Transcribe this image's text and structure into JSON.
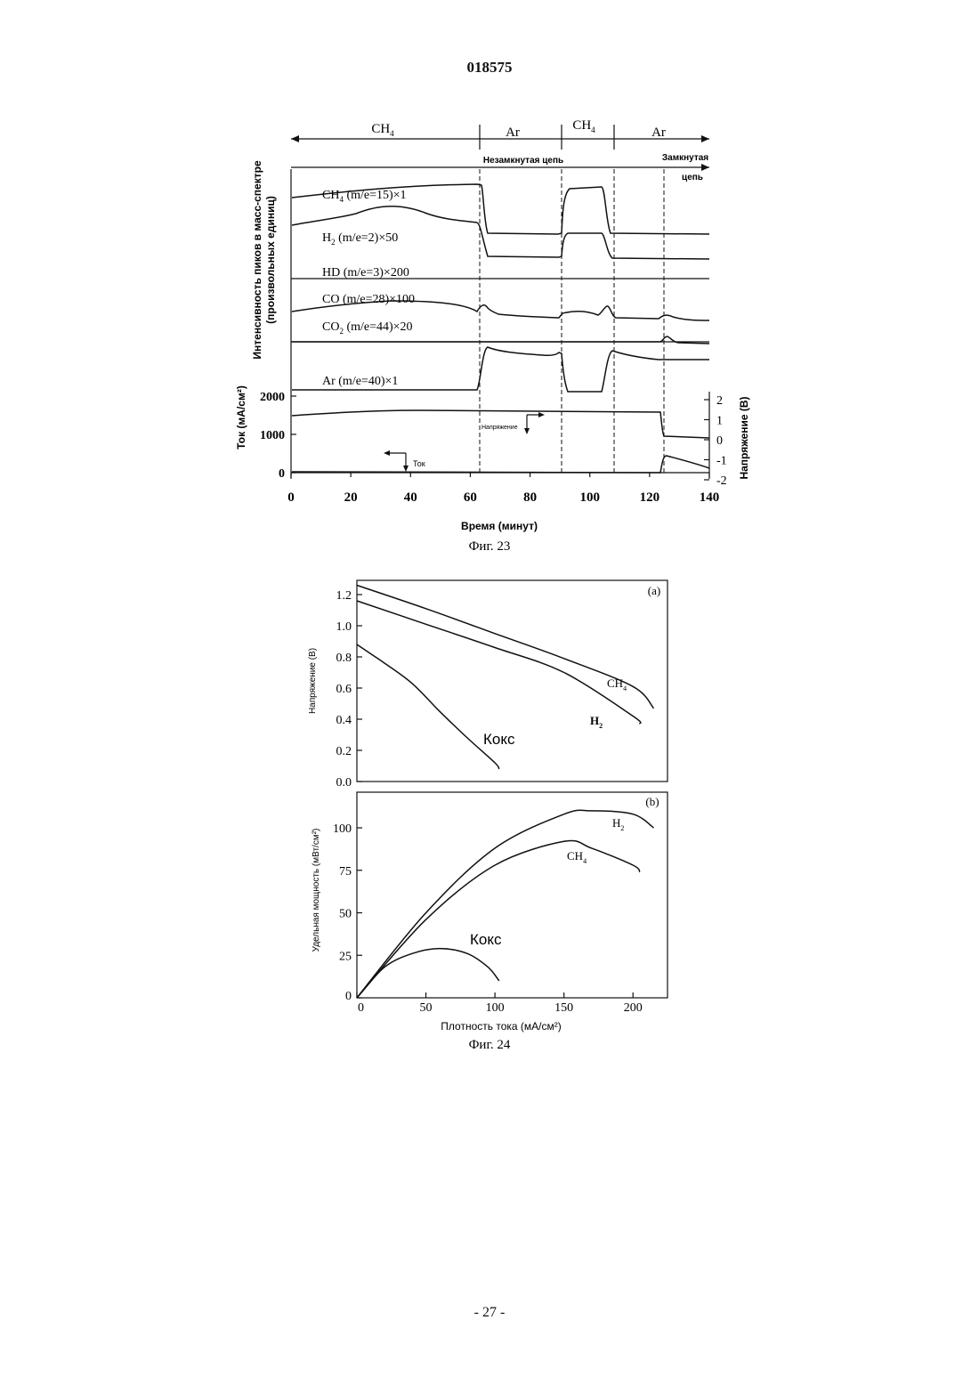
{
  "page": {
    "header": "018575",
    "footer": "- 27 -"
  },
  "fig23": {
    "caption": "Фиг. 23",
    "phases": [
      "CH4",
      "Ar",
      "CH4",
      "Ar"
    ],
    "phase_sub": [
      "CH",
      "4"
    ],
    "phase_ar": "Ar",
    "circuit_open": "Незамкнутая цепь",
    "circuit_closed_line1": "Замкнутая",
    "circuit_closed_line2": "цепь",
    "left_label_top_line1": "Интенсивность пиков в масс-спектре",
    "left_label_top_line2": "(произвольных единиц)",
    "left_label_bottom": "Ток (мА/см²)",
    "right_label": "Напряжение (В)",
    "xlabel": "Время (минут)",
    "trace_labels": {
      "ch4": "CH4 (m/e=15)×1",
      "h2": "H2 (m/e=2)×50",
      "hd": "HD (m/e=3)×200",
      "co": "CO (m/e=28)×100",
      "co2": "CO2 (m/e=44)×20",
      "ar": "Ar (m/e=40)×1"
    },
    "annot_voltage": "Напряжение",
    "annot_current": "Ток"
  },
  "fig24": {
    "caption": "Фиг. 24",
    "panel_a": "(a)",
    "panel_b": "(b)",
    "ylabel_a": "Напряжение (В)",
    "ylabel_b": "Удельная мощность (мВт/см²)",
    "xlabel": "Плотность тока (мА/см²)",
    "label_ch4": "CH4",
    "label_h2": "H2",
    "label_coke": "Кокс"
  },
  "chart_data": [
    {
      "type": "line",
      "title": "Фиг. 23",
      "xlabel": "Время (минут)",
      "x_ticks": [
        0,
        20,
        40,
        60,
        80,
        100,
        120,
        140
      ],
      "xlim": [
        0,
        140
      ],
      "y_left_ticks_current": [
        0,
        1000,
        2000
      ],
      "y_right_ticks_voltage": [
        -2,
        -1,
        0,
        1,
        2
      ],
      "phase_boundaries": [
        63,
        90,
        108,
        125
      ],
      "series": [
        {
          "name": "CH4 (m/e=15)×1",
          "x": [
            0,
            20,
            40,
            62,
            63,
            65,
            90,
            92,
            104,
            106,
            108,
            140
          ],
          "rel": [
            0.85,
            0.9,
            0.95,
            1.0,
            1.0,
            0.1,
            0.1,
            0.92,
            0.95,
            0.1,
            0.1,
            0.1
          ]
        },
        {
          "name": "H2 (m/e=2)×50",
          "x": [
            0,
            10,
            20,
            35,
            50,
            62,
            64,
            66,
            90,
            91,
            92,
            104,
            106,
            108,
            140
          ],
          "rel": [
            0.35,
            0.45,
            0.75,
            0.95,
            0.6,
            0.5,
            0.3,
            0.05,
            0.05,
            0.8,
            0.85,
            0.85,
            0.1,
            0.1,
            0.1
          ]
        },
        {
          "name": "HD (m/e=3)×200",
          "x": [
            0,
            140
          ],
          "rel": [
            0,
            0
          ]
        },
        {
          "name": "CO (m/e=28)×100",
          "x": [
            0,
            20,
            40,
            60,
            64,
            70,
            80,
            90,
            95,
            100,
            105,
            107,
            110,
            140
          ],
          "rel": [
            0.3,
            0.6,
            0.65,
            0.5,
            0.8,
            0.5,
            0.1,
            0.0,
            0.3,
            0.4,
            0.6,
            0.3,
            0.1,
            0.0
          ]
        },
        {
          "name": "CO2 (m/e=44)×20",
          "x": [
            0,
            124,
            126,
            130,
            140
          ],
          "rel": [
            0,
            0,
            0.8,
            0.2,
            0.1
          ]
        },
        {
          "name": "Ar (m/e=40)×1",
          "x": [
            0,
            62,
            63,
            66,
            88,
            90,
            92,
            104,
            106,
            108,
            140
          ],
          "rel": [
            0,
            0,
            0.9,
            1.0,
            0.9,
            0.95,
            0.0,
            0.0,
            0.9,
            0.95,
            0.85
          ]
        },
        {
          "name": "Напряжение (В)",
          "x": [
            0,
            20,
            40,
            60,
            80,
            100,
            124,
            125,
            126,
            140
          ],
          "y": [
            1.2,
            1.3,
            1.35,
            1.35,
            1.35,
            1.35,
            1.35,
            -0.3,
            -0.45,
            -0.6
          ]
        },
        {
          "name": "Ток (мА/см²)",
          "x": [
            0,
            124,
            125,
            126,
            140
          ],
          "y": [
            0,
            0,
            850,
            900,
            1000
          ]
        }
      ]
    },
    {
      "type": "line",
      "title": "(a)",
      "xlabel": "",
      "ylabel": "Напряжение (В)",
      "xlim": [
        0,
        225
      ],
      "ylim": [
        0.0,
        1.25
      ],
      "y_ticks": [
        0.0,
        0.2,
        0.4,
        0.6,
        0.8,
        1.0,
        1.2
      ],
      "series": [
        {
          "name": "CH4",
          "x": [
            0,
            50,
            100,
            150,
            200,
            215
          ],
          "y": [
            1.26,
            1.11,
            0.95,
            0.79,
            0.61,
            0.47
          ]
        },
        {
          "name": "H2",
          "x": [
            0,
            50,
            100,
            150,
            200,
            205
          ],
          "y": [
            1.16,
            1.01,
            0.86,
            0.7,
            0.42,
            0.37
          ]
        },
        {
          "name": "Кокс",
          "x": [
            0,
            10,
            20,
            40,
            60,
            80,
            100,
            103
          ],
          "y": [
            0.88,
            0.82,
            0.76,
            0.63,
            0.45,
            0.28,
            0.12,
            0.08
          ]
        }
      ]
    },
    {
      "type": "line",
      "title": "(b)",
      "xlabel": "Плотность тока (мА/см²)",
      "ylabel": "Удельная мощность (мВт/см²)",
      "xlim": [
        0,
        225
      ],
      "ylim": [
        0,
        118
      ],
      "x_ticks": [
        0,
        50,
        100,
        150,
        200
      ],
      "y_ticks": [
        0,
        25,
        50,
        75,
        100
      ],
      "series": [
        {
          "name": "H2",
          "x": [
            0,
            50,
            100,
            150,
            170,
            200,
            215
          ],
          "y": [
            0,
            50,
            88,
            108,
            110,
            108,
            100
          ]
        },
        {
          "name": "CH4",
          "x": [
            0,
            50,
            100,
            150,
            170,
            200,
            205
          ],
          "y": [
            0,
            46,
            78,
            92,
            88,
            78,
            74
          ]
        },
        {
          "name": "Кокс",
          "x": [
            0,
            20,
            40,
            60,
            80,
            95,
            103
          ],
          "y": [
            0,
            18,
            26,
            29,
            26,
            18,
            10
          ]
        }
      ]
    }
  ]
}
